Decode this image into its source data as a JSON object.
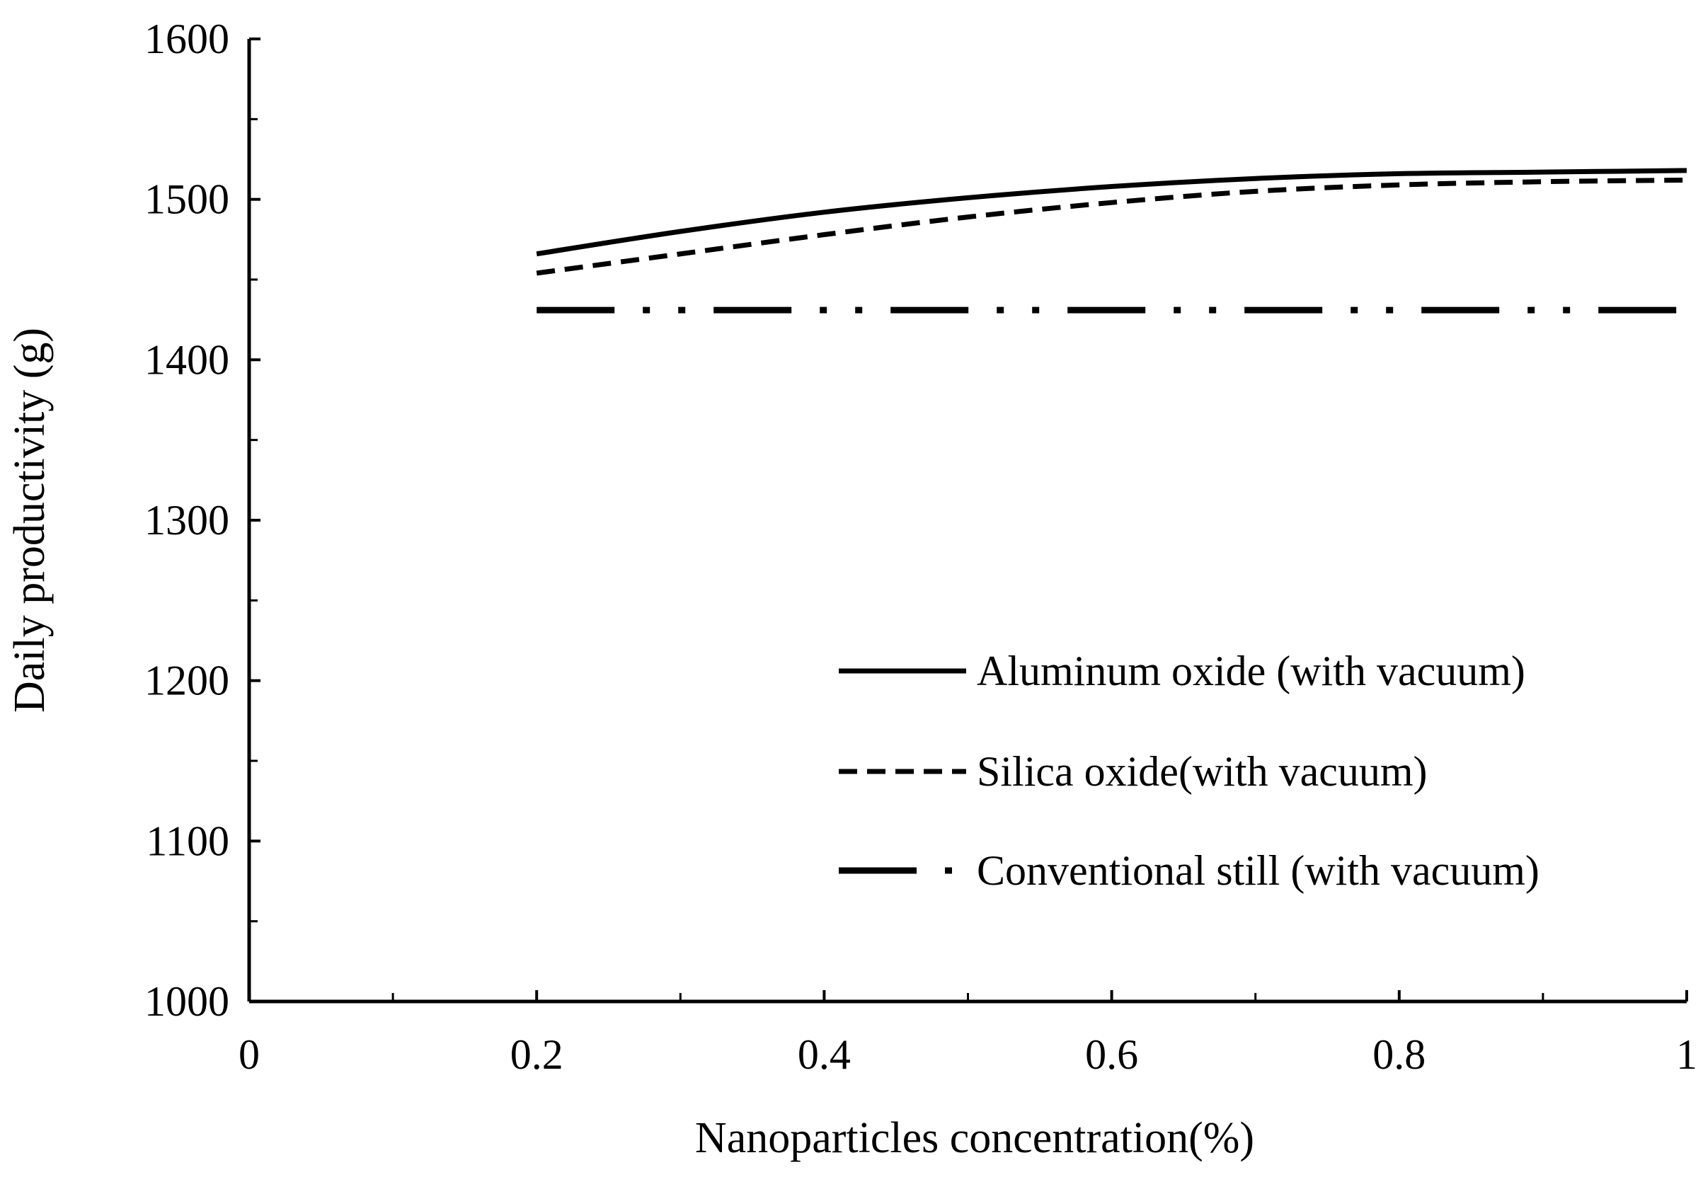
{
  "chart_data": {
    "type": "line",
    "xlabel": "Nanoparticles concentration(%)",
    "ylabel": "Daily productivity (g)",
    "xlim": [
      0,
      1
    ],
    "ylim": [
      1000,
      1600
    ],
    "x_ticks": [
      0,
      0.2,
      0.4,
      0.6,
      0.8,
      1
    ],
    "x_tick_labels": [
      "0",
      "0.2",
      "0.4",
      "0.6",
      "0.8",
      "1"
    ],
    "y_ticks": [
      1000,
      1100,
      1200,
      1300,
      1400,
      1500,
      1600
    ],
    "y_tick_labels": [
      "1000",
      "1100",
      "1200",
      "1300",
      "1400",
      "1500",
      "1600"
    ],
    "x_minor_ticks": [
      0.1,
      0.3,
      0.5,
      0.7,
      0.9
    ],
    "y_minor_ticks": [
      1050,
      1150,
      1250,
      1350,
      1450,
      1550
    ],
    "grid": false,
    "legend_position": "bottom-right",
    "series": [
      {
        "name": "Aluminum oxide (with vacuum)",
        "style": "solid",
        "x": [
          0.2,
          0.3,
          0.4,
          0.5,
          0.6,
          0.7,
          0.8,
          0.9,
          1.0
        ],
        "y": [
          1466,
          1480,
          1492,
          1501,
          1508,
          1513,
          1516,
          1517,
          1518
        ]
      },
      {
        "name": "Silica oxide(with vacuum)",
        "style": "dashed",
        "x": [
          0.2,
          0.3,
          0.4,
          0.5,
          0.6,
          0.7,
          0.8,
          0.9,
          1.0
        ],
        "y": [
          1454,
          1466,
          1478,
          1489,
          1498,
          1505,
          1509,
          1511,
          1512
        ]
      },
      {
        "name": "Conventional still (with vacuum)",
        "style": "dash-dot-dot",
        "x": [
          0.2,
          1.0
        ],
        "y": [
          1431,
          1431
        ]
      }
    ]
  }
}
